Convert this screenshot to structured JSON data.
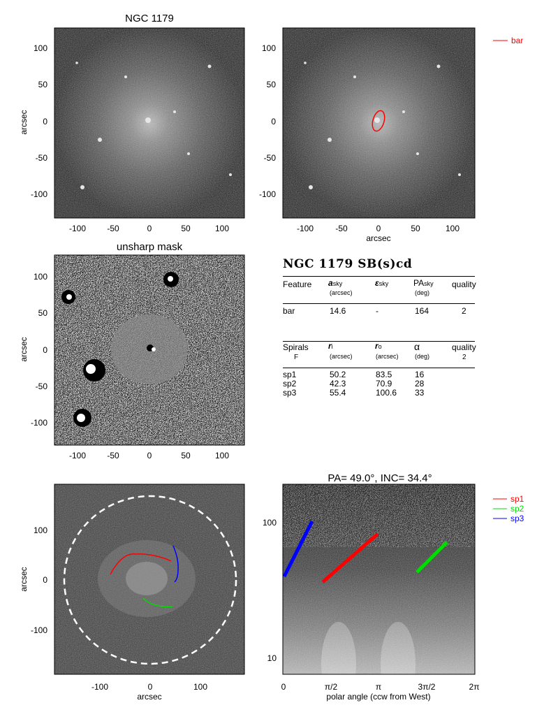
{
  "panels": {
    "p1": {
      "title": "NGC 1179",
      "ylabel": "arcsec",
      "xticks": [
        "-100",
        "-50",
        "0",
        "50",
        "100"
      ],
      "yticks": [
        "100",
        "50",
        "0",
        "-50",
        "-100"
      ]
    },
    "p2": {
      "xlabel": "arcsec",
      "xticks": [
        "-100",
        "-50",
        "0",
        "50",
        "100"
      ],
      "yticks": [
        "100",
        "50",
        "0",
        "-50",
        "-100"
      ],
      "legend": "bar"
    },
    "p3": {
      "title": "unsharp mask",
      "ylabel": "arcsec",
      "xticks": [
        "-100",
        "-50",
        "0",
        "50",
        "100"
      ],
      "yticks": [
        "100",
        "50",
        "0",
        "-50",
        "-100"
      ]
    },
    "p5": {
      "xlabel": "arcsec",
      "ylabel": "arcsec",
      "xticks": [
        "-100",
        "0",
        "100"
      ],
      "yticks": [
        "100",
        "0",
        "-100"
      ]
    },
    "p6": {
      "title": "PA= 49.0°, INC= 34.4°",
      "xlabel": "polar angle (ccw from West)",
      "xticks": [
        "0",
        "π/2",
        "π",
        "3π/2",
        "2π"
      ],
      "yticks": [
        "100",
        "10"
      ],
      "legend": [
        "sp1",
        "sp2",
        "sp3"
      ]
    }
  },
  "table": {
    "title": "NGC 1179  SB(s)cd",
    "bar_header": {
      "c1": "Feature",
      "c2": "a",
      "c2sub": "sky",
      "c2unit": "(arcsec)",
      "c3": "ε",
      "c3sub": "sky",
      "c4": "PA",
      "c4sub": "sky",
      "c4unit": "(deg)",
      "c5": "quality"
    },
    "bar_row": {
      "c1": "bar",
      "c2": "14.6",
      "c3": "-",
      "c4": "164",
      "c5": "2"
    },
    "spiral_header": {
      "c1": "Spirals",
      "c1b": "F",
      "c2": "r",
      "c2sub": "i",
      "c2unit": "(arcsec)",
      "c3": "r",
      "c3sub": "o",
      "c3unit": "(arcsec)",
      "c4": "α",
      "c4unit": "(deg)",
      "c5": "quality",
      "c5b": "2"
    },
    "spiral_rows": [
      {
        "name": "sp1",
        "ri": "50.2",
        "ro": "83.5",
        "alpha": "16"
      },
      {
        "name": "sp2",
        "ri": "42.3",
        "ro": "70.9",
        "alpha": "28"
      },
      {
        "name": "sp3",
        "ri": "55.4",
        "ro": "100.6",
        "alpha": "33"
      }
    ]
  },
  "colors": {
    "sp1": "#ff0000",
    "sp2": "#00dd00",
    "sp3": "#0000ff",
    "bar": "#ff0000"
  }
}
